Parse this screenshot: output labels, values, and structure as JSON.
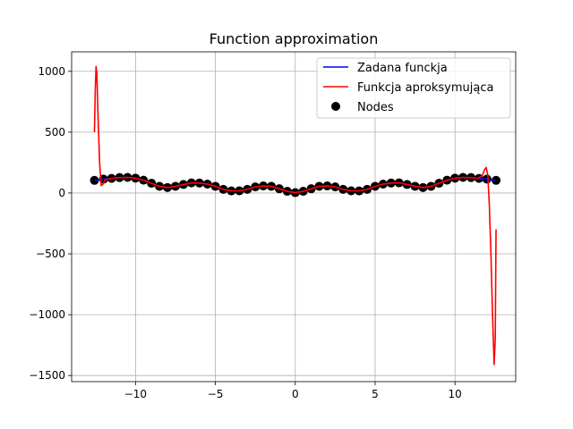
{
  "chart_data": {
    "type": "line",
    "title": "Function approximation",
    "xlabel": "",
    "ylabel": "",
    "xlim": [
      -14.0,
      13.8
    ],
    "ylim": [
      -1550,
      1160
    ],
    "xticks": [
      -10,
      -5,
      0,
      5,
      10
    ],
    "yticks": [
      -1500,
      -1000,
      -500,
      0,
      500,
      1000
    ],
    "xtick_labels": [
      "−10",
      "−5",
      "0",
      "5",
      "10"
    ],
    "ytick_labels": [
      "−1500",
      "−1000",
      "−500",
      "0",
      "500",
      "1000"
    ],
    "grid": true,
    "legend_position": "upper-right",
    "series": [
      {
        "name": "Zadana funckja",
        "kind": "line",
        "color": "#0000ff",
        "x": [
          -12.57,
          -12.0,
          -11.5,
          -11.0,
          -10.5,
          -10.0,
          -9.5,
          -9.0,
          -8.5,
          -8.0,
          -7.5,
          -7.0,
          -6.5,
          -6.0,
          -5.5,
          -5.0,
          -4.5,
          -4.0,
          -3.5,
          -3.0,
          -2.5,
          -2.0,
          -1.5,
          -1.0,
          -0.5,
          0.0,
          0.5,
          1.0,
          1.5,
          2.0,
          2.5,
          3.0,
          3.5,
          4.0,
          4.5,
          5.0,
          5.5,
          6.0,
          6.5,
          7.0,
          7.5,
          8.0,
          8.5,
          9.0,
          9.5,
          10.0,
          10.5,
          11.0,
          11.5,
          12.0,
          12.57
        ],
        "y": [
          104,
          114,
          120,
          127,
          128,
          122,
          105,
          80,
          55,
          45,
          55,
          70,
          83,
          82,
          73,
          55,
          30,
          17,
          18,
          30,
          50,
          58,
          55,
          35,
          14,
          3,
          14,
          35,
          55,
          58,
          50,
          30,
          18,
          17,
          30,
          55,
          73,
          82,
          83,
          70,
          55,
          45,
          55,
          80,
          105,
          122,
          128,
          127,
          120,
          114,
          104
        ]
      },
      {
        "name": "Funkcja aproksymująca",
        "kind": "line",
        "color": "#ff0000",
        "x": [
          -12.57,
          -12.52,
          -12.47,
          -12.42,
          -12.35,
          -12.25,
          -12.15,
          -12.05,
          -11.9,
          -11.5,
          -11.0,
          -10.5,
          -10.0,
          -9.5,
          -9.0,
          -8.5,
          -8.0,
          -7.5,
          -7.0,
          -6.5,
          -6.0,
          -5.5,
          -5.0,
          -4.5,
          -4.0,
          -3.5,
          -3.0,
          -2.5,
          -2.0,
          -1.5,
          -1.0,
          -0.5,
          0.0,
          0.5,
          1.0,
          1.5,
          2.0,
          2.5,
          3.0,
          3.5,
          4.0,
          4.5,
          5.0,
          5.5,
          6.0,
          6.5,
          7.0,
          7.5,
          8.0,
          8.5,
          9.0,
          9.5,
          10.0,
          10.5,
          11.0,
          11.4,
          11.7,
          11.85,
          11.95,
          12.05,
          12.15,
          12.25,
          12.35,
          12.45,
          12.52,
          12.57
        ],
        "y": [
          500,
          850,
          1040,
          980,
          650,
          250,
          60,
          70,
          110,
          120,
          127,
          128,
          122,
          105,
          80,
          55,
          45,
          55,
          70,
          83,
          82,
          73,
          55,
          30,
          17,
          18,
          30,
          50,
          58,
          55,
          35,
          14,
          3,
          14,
          35,
          55,
          58,
          50,
          30,
          18,
          17,
          30,
          55,
          73,
          82,
          83,
          70,
          55,
          45,
          55,
          80,
          105,
          122,
          128,
          127,
          120,
          140,
          190,
          210,
          150,
          -100,
          -500,
          -1000,
          -1410,
          -1200,
          -300
        ]
      },
      {
        "name": "Nodes",
        "kind": "scatter",
        "color": "#000000",
        "x": [
          -12.57,
          -12.0,
          -11.5,
          -11.0,
          -10.5,
          -10.0,
          -9.5,
          -9.0,
          -8.5,
          -8.0,
          -7.5,
          -7.0,
          -6.5,
          -6.0,
          -5.5,
          -5.0,
          -4.5,
          -4.0,
          -3.5,
          -3.0,
          -2.5,
          -2.0,
          -1.5,
          -1.0,
          -0.5,
          0.0,
          0.5,
          1.0,
          1.5,
          2.0,
          2.5,
          3.0,
          3.5,
          4.0,
          4.5,
          5.0,
          5.5,
          6.0,
          6.5,
          7.0,
          7.5,
          8.0,
          8.5,
          9.0,
          9.5,
          10.0,
          10.5,
          11.0,
          11.5,
          12.0,
          12.57
        ],
        "y": [
          104,
          114,
          120,
          127,
          128,
          122,
          105,
          80,
          55,
          45,
          55,
          70,
          83,
          82,
          73,
          55,
          30,
          17,
          18,
          30,
          50,
          58,
          55,
          35,
          14,
          3,
          14,
          35,
          55,
          58,
          50,
          30,
          18,
          17,
          30,
          55,
          73,
          82,
          83,
          70,
          55,
          45,
          55,
          80,
          105,
          122,
          128,
          127,
          120,
          114,
          104
        ]
      }
    ]
  }
}
